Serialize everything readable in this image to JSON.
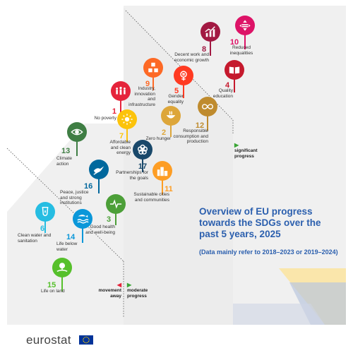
{
  "title": "Overview of EU progress towards the SDGs over the past 5 years, 2025",
  "subtitle": "(Data mainly refer to 2018–2023 or 2019–2024)",
  "legend": {
    "significant": "significant progress",
    "moderate": "moderate progress",
    "away": "movement away"
  },
  "logo": "eurostat",
  "goals": [
    {
      "num": "1",
      "label": "No poverty",
      "color": "#e5243b",
      "icon": "people-icon"
    },
    {
      "num": "2",
      "label": "Zero hunger",
      "color": "#dda63a",
      "icon": "bowl-icon"
    },
    {
      "num": "3",
      "label": "Good health and well-being",
      "color": "#4c9f38",
      "icon": "heartbeat-icon"
    },
    {
      "num": "4",
      "label": "Quality education",
      "color": "#c5192d",
      "icon": "book-icon"
    },
    {
      "num": "5",
      "label": "Gender equality",
      "color": "#ff3a21",
      "icon": "gender-icon"
    },
    {
      "num": "6",
      "label": "Clean water and sanitation",
      "color": "#26bde2",
      "icon": "water-drop-icon"
    },
    {
      "num": "7",
      "label": "Affordable and clean energy",
      "color": "#fcc30b",
      "icon": "sun-icon"
    },
    {
      "num": "8",
      "label": "Decent work and economic growth",
      "color": "#a21942",
      "icon": "growth-chart-icon"
    },
    {
      "num": "9",
      "label": "Industry, innovation and infrastructure",
      "color": "#fd6925",
      "icon": "cubes-icon"
    },
    {
      "num": "10",
      "label": "Reduced inequalities",
      "color": "#dd1367",
      "icon": "equality-icon"
    },
    {
      "num": "11",
      "label": "Sustainable cities and communities",
      "color": "#fd9d24",
      "icon": "city-icon"
    },
    {
      "num": "12",
      "label": "Responsible consumption and production",
      "color": "#bf8b2e",
      "icon": "infinity-icon"
    },
    {
      "num": "13",
      "label": "Climate action",
      "color": "#3f7e44",
      "icon": "eye-globe-icon"
    },
    {
      "num": "14",
      "label": "Life below water",
      "color": "#0a97d9",
      "icon": "fish-icon"
    },
    {
      "num": "15",
      "label": "Life on land",
      "color": "#56c02b",
      "icon": "tree-icon"
    },
    {
      "num": "16",
      "label": "Peace, justice and strong institutions",
      "color": "#00689d",
      "icon": "dove-icon"
    },
    {
      "num": "17",
      "label": "Partnerships for the goals",
      "color": "#19486a",
      "icon": "rings-icon"
    }
  ]
}
